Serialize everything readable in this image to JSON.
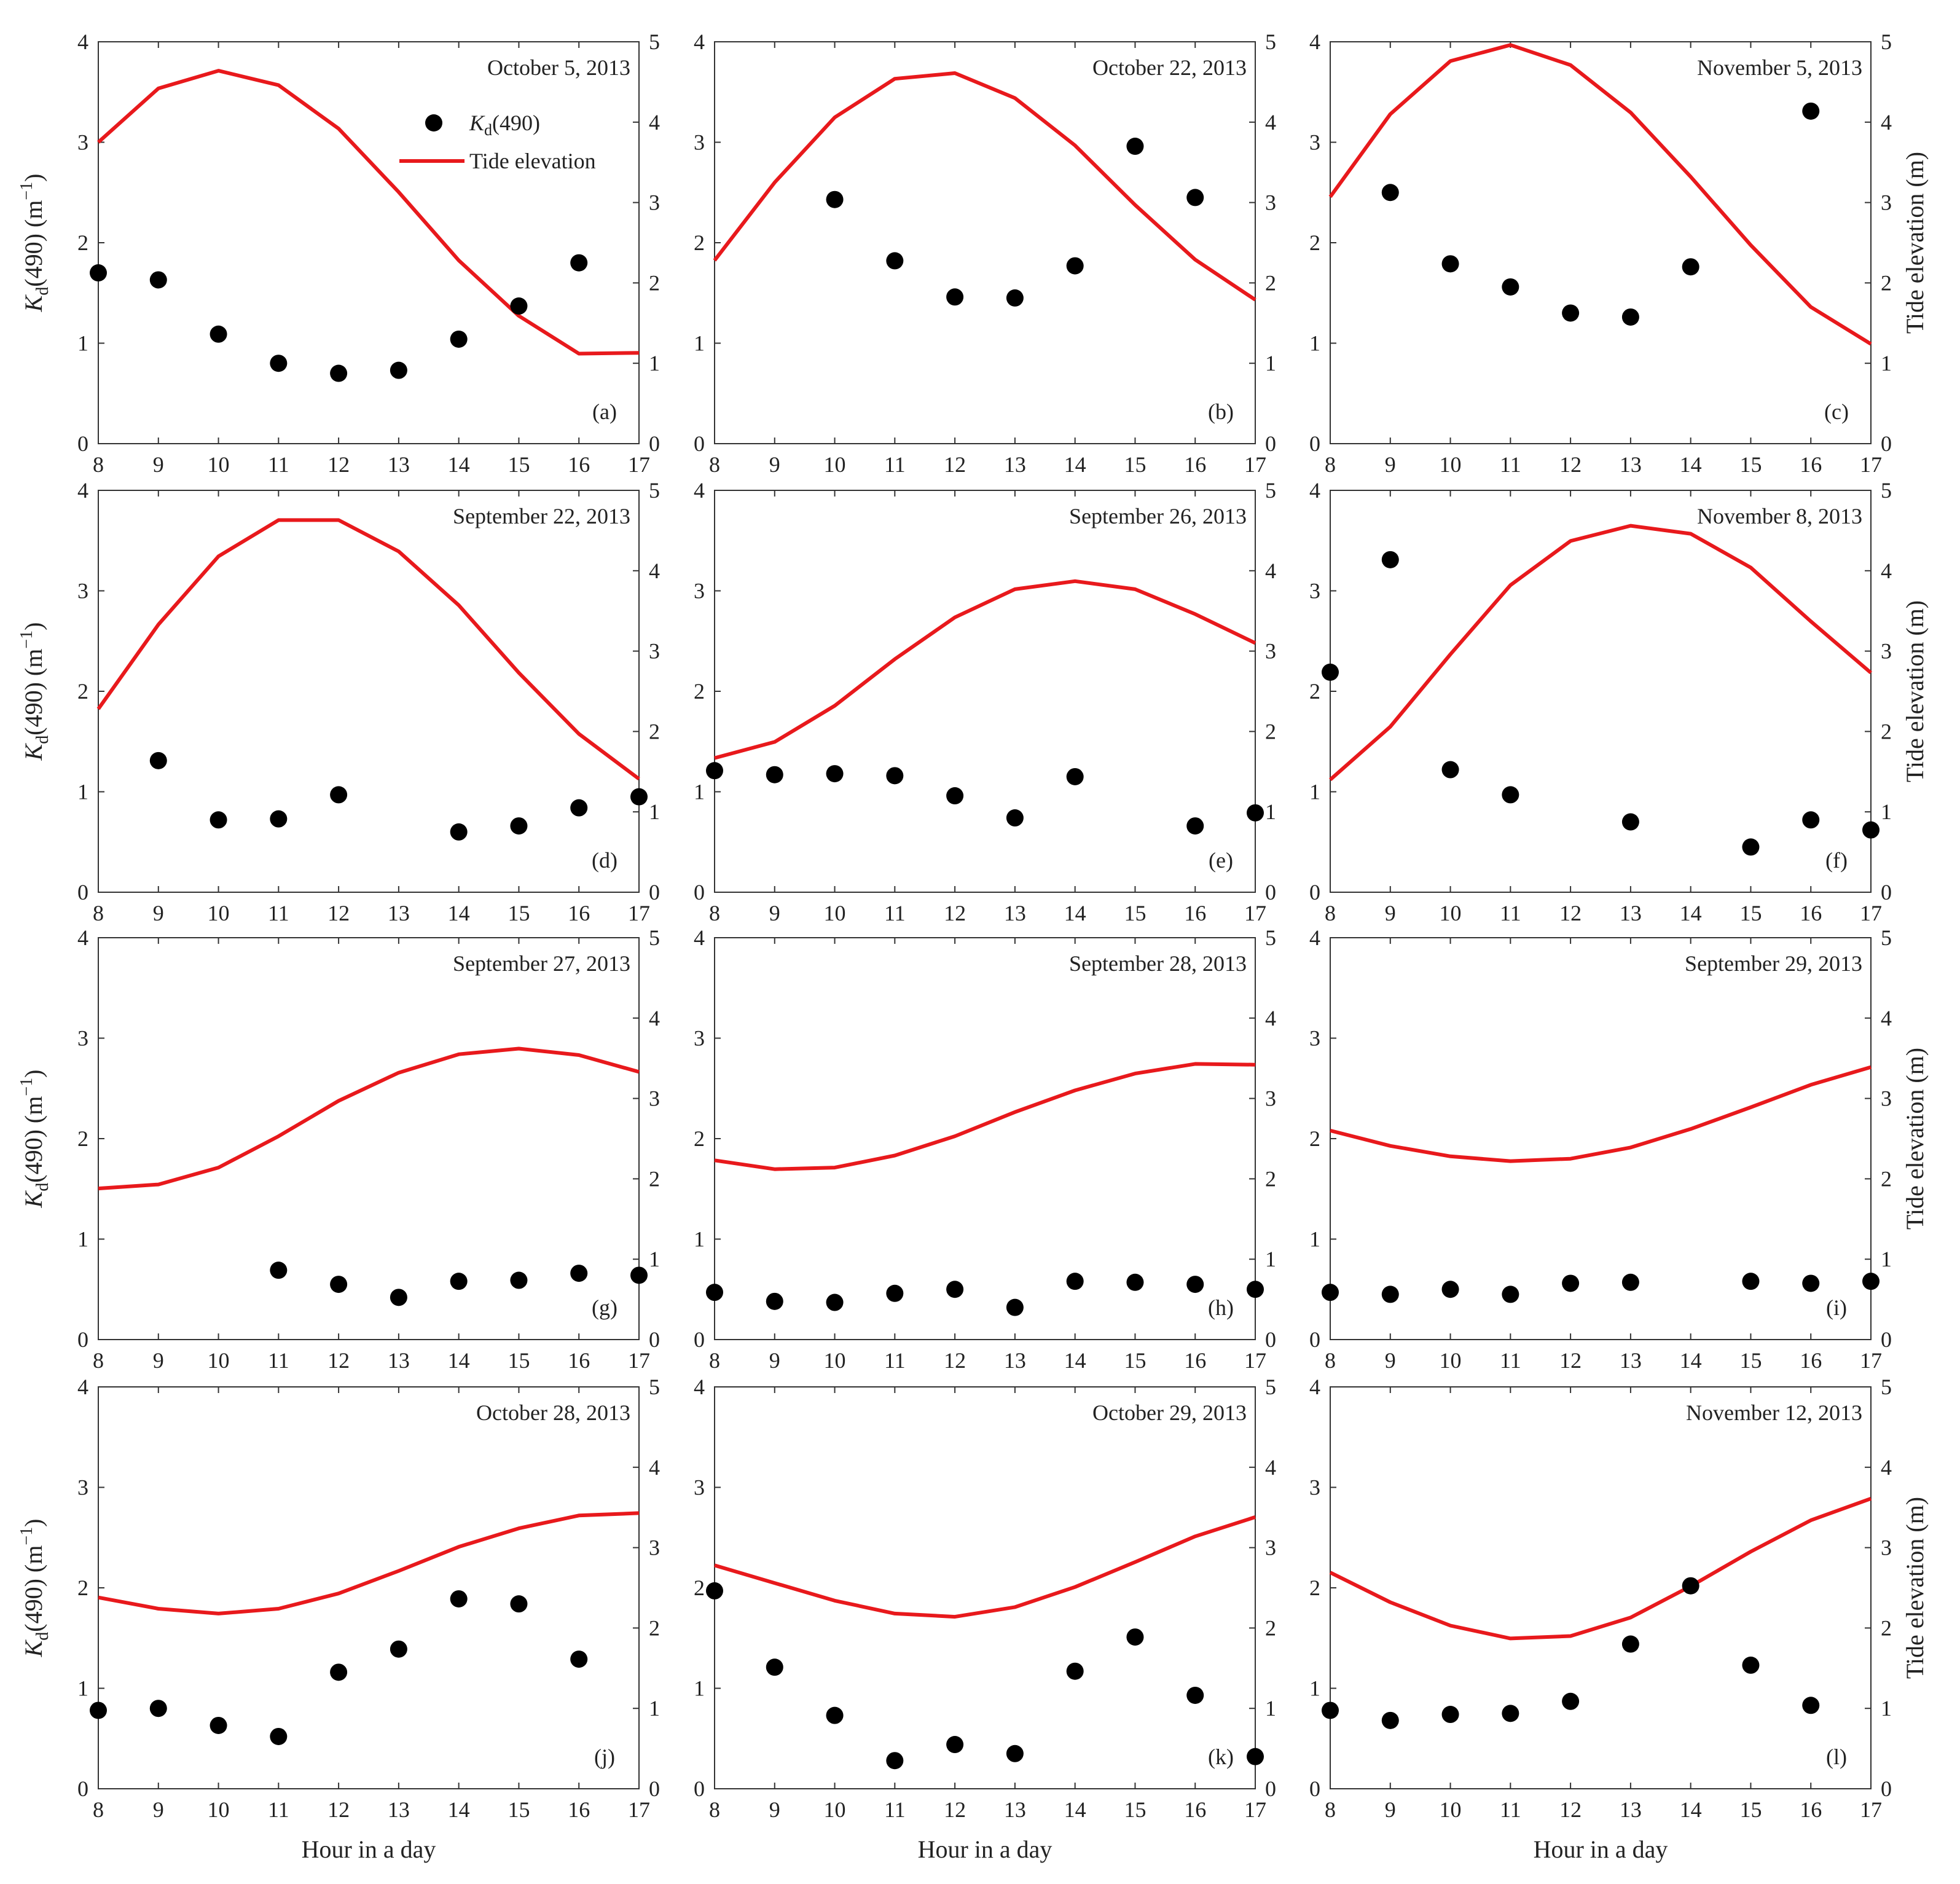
{
  "figure": {
    "xlabel": "Hour in a day",
    "ylabel_left_main": "K",
    "ylabel_left_sub": "d",
    "ylabel_left_rest": "(490) (m",
    "ylabel_left_sup": "−1",
    "ylabel_left_close": ")",
    "ylabel_right": "Tide elevation (m)",
    "legend": {
      "kd_main": "K",
      "kd_sub": "d",
      "kd_rest": "(490)",
      "tide": "Tide elevation"
    },
    "colors": {
      "kd_points": "#000000",
      "tide_line": "#e8191c",
      "axes": "#333333"
    },
    "x_ticks": [
      8,
      9,
      10,
      11,
      12,
      13,
      14,
      15,
      16,
      17
    ],
    "kd_ticks": [
      0,
      1,
      2,
      3,
      4
    ],
    "tide_ticks": [
      0,
      1,
      2,
      3,
      4,
      5
    ]
  },
  "chart_data": [
    {
      "type": "line+scatter",
      "panel": "(a)",
      "date": "October 5, 2013",
      "xlim": [
        8,
        17
      ],
      "ylim_left": [
        0,
        4
      ],
      "ylim_right": [
        0,
        5
      ],
      "kd": {
        "x": [
          8,
          9,
          10,
          11,
          12,
          13,
          14,
          15,
          16
        ],
        "y": [
          1.7,
          1.63,
          1.09,
          0.8,
          0.7,
          0.73,
          1.04,
          1.37,
          1.8
        ]
      },
      "tide": {
        "x": [
          8,
          9,
          10,
          11,
          12,
          13,
          14,
          15,
          16,
          17
        ],
        "y": [
          3.75,
          4.42,
          4.64,
          4.46,
          3.92,
          3.13,
          2.28,
          1.59,
          1.12,
          1.13
        ]
      }
    },
    {
      "type": "line+scatter",
      "panel": "(b)",
      "date": "October 22, 2013",
      "xlim": [
        8,
        17
      ],
      "ylim_left": [
        0,
        4
      ],
      "ylim_right": [
        0,
        5
      ],
      "kd": {
        "x": [
          10,
          11,
          12,
          13,
          14,
          15,
          16
        ],
        "y": [
          2.43,
          1.82,
          1.46,
          1.45,
          1.77,
          2.96,
          2.45
        ]
      },
      "tide": {
        "x": [
          8,
          9,
          10,
          11,
          12,
          13,
          14,
          15,
          16,
          17
        ],
        "y": [
          2.28,
          3.25,
          4.06,
          4.54,
          4.61,
          4.3,
          3.71,
          2.97,
          2.29,
          1.79
        ]
      }
    },
    {
      "type": "line+scatter",
      "panel": "(c)",
      "date": "November 5, 2013",
      "xlim": [
        8,
        17
      ],
      "ylim_left": [
        0,
        4
      ],
      "ylim_right": [
        0,
        5
      ],
      "kd": {
        "x": [
          9,
          10,
          11,
          12,
          13,
          14,
          16
        ],
        "y": [
          2.5,
          1.79,
          1.56,
          1.3,
          1.26,
          1.76,
          3.31
        ]
      },
      "tide": {
        "x": [
          8,
          9,
          10,
          11,
          12,
          13,
          14,
          15,
          16,
          17
        ],
        "y": [
          3.07,
          4.1,
          4.76,
          4.96,
          4.71,
          4.12,
          3.32,
          2.47,
          1.7,
          1.24
        ]
      }
    },
    {
      "type": "line+scatter",
      "panel": "(d)",
      "date": "September 22, 2013",
      "xlim": [
        8,
        17
      ],
      "ylim_left": [
        0,
        4
      ],
      "ylim_right": [
        0,
        5
      ],
      "kd": {
        "x": [
          9,
          10,
          11,
          12,
          14,
          15,
          16,
          17
        ],
        "y": [
          1.31,
          0.72,
          0.73,
          0.97,
          0.6,
          0.66,
          0.84,
          0.95
        ]
      },
      "tide": {
        "x": [
          8,
          9,
          10,
          11,
          12,
          13,
          14,
          15,
          16,
          17
        ],
        "y": [
          2.28,
          3.33,
          4.18,
          4.63,
          4.63,
          4.24,
          3.57,
          2.73,
          1.97,
          1.41
        ]
      }
    },
    {
      "type": "line+scatter",
      "panel": "(e)",
      "date": "September 26, 2013",
      "xlim": [
        8,
        17
      ],
      "ylim_left": [
        0,
        4
      ],
      "ylim_right": [
        0,
        5
      ],
      "kd": {
        "x": [
          8,
          9,
          10,
          11,
          12,
          13,
          14,
          16,
          17
        ],
        "y": [
          1.21,
          1.17,
          1.18,
          1.16,
          0.96,
          0.74,
          1.15,
          0.66,
          0.79
        ]
      },
      "tide": {
        "x": [
          8,
          9,
          10,
          11,
          12,
          13,
          14,
          15,
          16,
          17
        ],
        "y": [
          1.67,
          1.87,
          2.32,
          2.9,
          3.42,
          3.77,
          3.87,
          3.77,
          3.46,
          3.1
        ]
      }
    },
    {
      "type": "line+scatter",
      "panel": "(f)",
      "date": "November 8, 2013",
      "xlim": [
        8,
        17
      ],
      "ylim_left": [
        0,
        4
      ],
      "ylim_right": [
        0,
        5
      ],
      "kd": {
        "x": [
          8,
          9,
          10,
          11,
          13,
          15,
          16,
          17
        ],
        "y": [
          2.19,
          3.31,
          1.22,
          0.97,
          0.7,
          0.45,
          0.72,
          0.62
        ]
      },
      "tide": {
        "x": [
          8,
          9,
          10,
          11,
          12,
          13,
          14,
          15,
          16,
          17
        ],
        "y": [
          1.4,
          2.06,
          2.96,
          3.82,
          4.37,
          4.56,
          4.46,
          4.04,
          3.37,
          2.73
        ]
      }
    },
    {
      "type": "line+scatter",
      "panel": "(g)",
      "date": "September 27, 2013",
      "xlim": [
        8,
        17
      ],
      "ylim_left": [
        0,
        4
      ],
      "ylim_right": [
        0,
        5
      ],
      "kd": {
        "x": [
          11,
          12,
          13,
          14,
          15,
          16,
          17
        ],
        "y": [
          0.69,
          0.55,
          0.42,
          0.58,
          0.59,
          0.66,
          0.64
        ]
      },
      "tide": {
        "x": [
          8,
          9,
          10,
          11,
          12,
          13,
          14,
          15,
          16,
          17
        ],
        "y": [
          1.88,
          1.93,
          2.14,
          2.53,
          2.97,
          3.32,
          3.55,
          3.62,
          3.54,
          3.33
        ]
      }
    },
    {
      "type": "line+scatter",
      "panel": "(h)",
      "date": "September 28, 2013",
      "xlim": [
        8,
        17
      ],
      "ylim_left": [
        0,
        4
      ],
      "ylim_right": [
        0,
        5
      ],
      "kd": {
        "x": [
          8,
          9,
          10,
          11,
          12,
          13,
          14,
          15,
          16,
          17
        ],
        "y": [
          0.47,
          0.38,
          0.37,
          0.46,
          0.5,
          0.32,
          0.58,
          0.57,
          0.55,
          0.5
        ]
      },
      "tide": {
        "x": [
          8,
          9,
          10,
          11,
          12,
          13,
          14,
          15,
          16,
          17
        ],
        "y": [
          2.23,
          2.12,
          2.14,
          2.29,
          2.53,
          2.83,
          3.1,
          3.31,
          3.43,
          3.42
        ]
      }
    },
    {
      "type": "line+scatter",
      "panel": "(i)",
      "date": "September 29, 2013",
      "xlim": [
        8,
        17
      ],
      "ylim_left": [
        0,
        4
      ],
      "ylim_right": [
        0,
        5
      ],
      "kd": {
        "x": [
          8,
          9,
          10,
          11,
          12,
          13,
          15,
          16,
          17
        ],
        "y": [
          0.47,
          0.45,
          0.5,
          0.45,
          0.56,
          0.57,
          0.58,
          0.56,
          0.58
        ]
      },
      "tide": {
        "x": [
          8,
          9,
          10,
          11,
          12,
          13,
          14,
          15,
          16,
          17
        ],
        "y": [
          2.6,
          2.41,
          2.28,
          2.22,
          2.25,
          2.39,
          2.62,
          2.89,
          3.17,
          3.39
        ]
      }
    },
    {
      "type": "line+scatter",
      "panel": "(j)",
      "date": "October 28, 2013",
      "xlim": [
        8,
        17
      ],
      "ylim_left": [
        0,
        4
      ],
      "ylim_right": [
        0,
        5
      ],
      "kd": {
        "x": [
          8,
          9,
          10,
          11,
          12,
          13,
          14,
          15,
          16
        ],
        "y": [
          0.78,
          0.8,
          0.63,
          0.52,
          1.16,
          1.39,
          1.89,
          1.84,
          1.29
        ]
      },
      "tide": {
        "x": [
          8,
          9,
          10,
          11,
          12,
          13,
          14,
          15,
          16,
          17
        ],
        "y": [
          2.38,
          2.24,
          2.18,
          2.24,
          2.43,
          2.71,
          3.01,
          3.24,
          3.4,
          3.43
        ]
      }
    },
    {
      "type": "line+scatter",
      "panel": "(k)",
      "date": "October 29, 2013",
      "xlim": [
        8,
        17
      ],
      "ylim_left": [
        0,
        4
      ],
      "ylim_right": [
        0,
        5
      ],
      "kd": {
        "x": [
          8,
          9,
          10,
          11,
          12,
          13,
          14,
          15,
          16,
          17
        ],
        "y": [
          1.97,
          1.21,
          0.73,
          0.28,
          0.44,
          0.35,
          1.17,
          1.51,
          0.93,
          0.32
        ]
      },
      "tide": {
        "x": [
          8,
          9,
          10,
          11,
          12,
          13,
          14,
          15,
          16,
          17
        ],
        "y": [
          2.78,
          2.56,
          2.34,
          2.18,
          2.14,
          2.26,
          2.51,
          2.82,
          3.14,
          3.38
        ]
      }
    },
    {
      "type": "line+scatter",
      "panel": "(l)",
      "date": "November 12, 2013",
      "xlim": [
        8,
        17
      ],
      "ylim_left": [
        0,
        4
      ],
      "ylim_right": [
        0,
        5
      ],
      "kd": {
        "x": [
          8,
          9,
          10,
          11,
          12,
          13,
          14,
          15,
          16
        ],
        "y": [
          0.78,
          0.68,
          0.74,
          0.75,
          0.87,
          1.44,
          2.02,
          1.23,
          0.83
        ]
      },
      "tide": {
        "x": [
          8,
          9,
          10,
          11,
          12,
          13,
          14,
          15,
          16,
          17
        ],
        "y": [
          2.69,
          2.32,
          2.03,
          1.87,
          1.9,
          2.13,
          2.52,
          2.95,
          3.34,
          3.61
        ]
      }
    }
  ]
}
